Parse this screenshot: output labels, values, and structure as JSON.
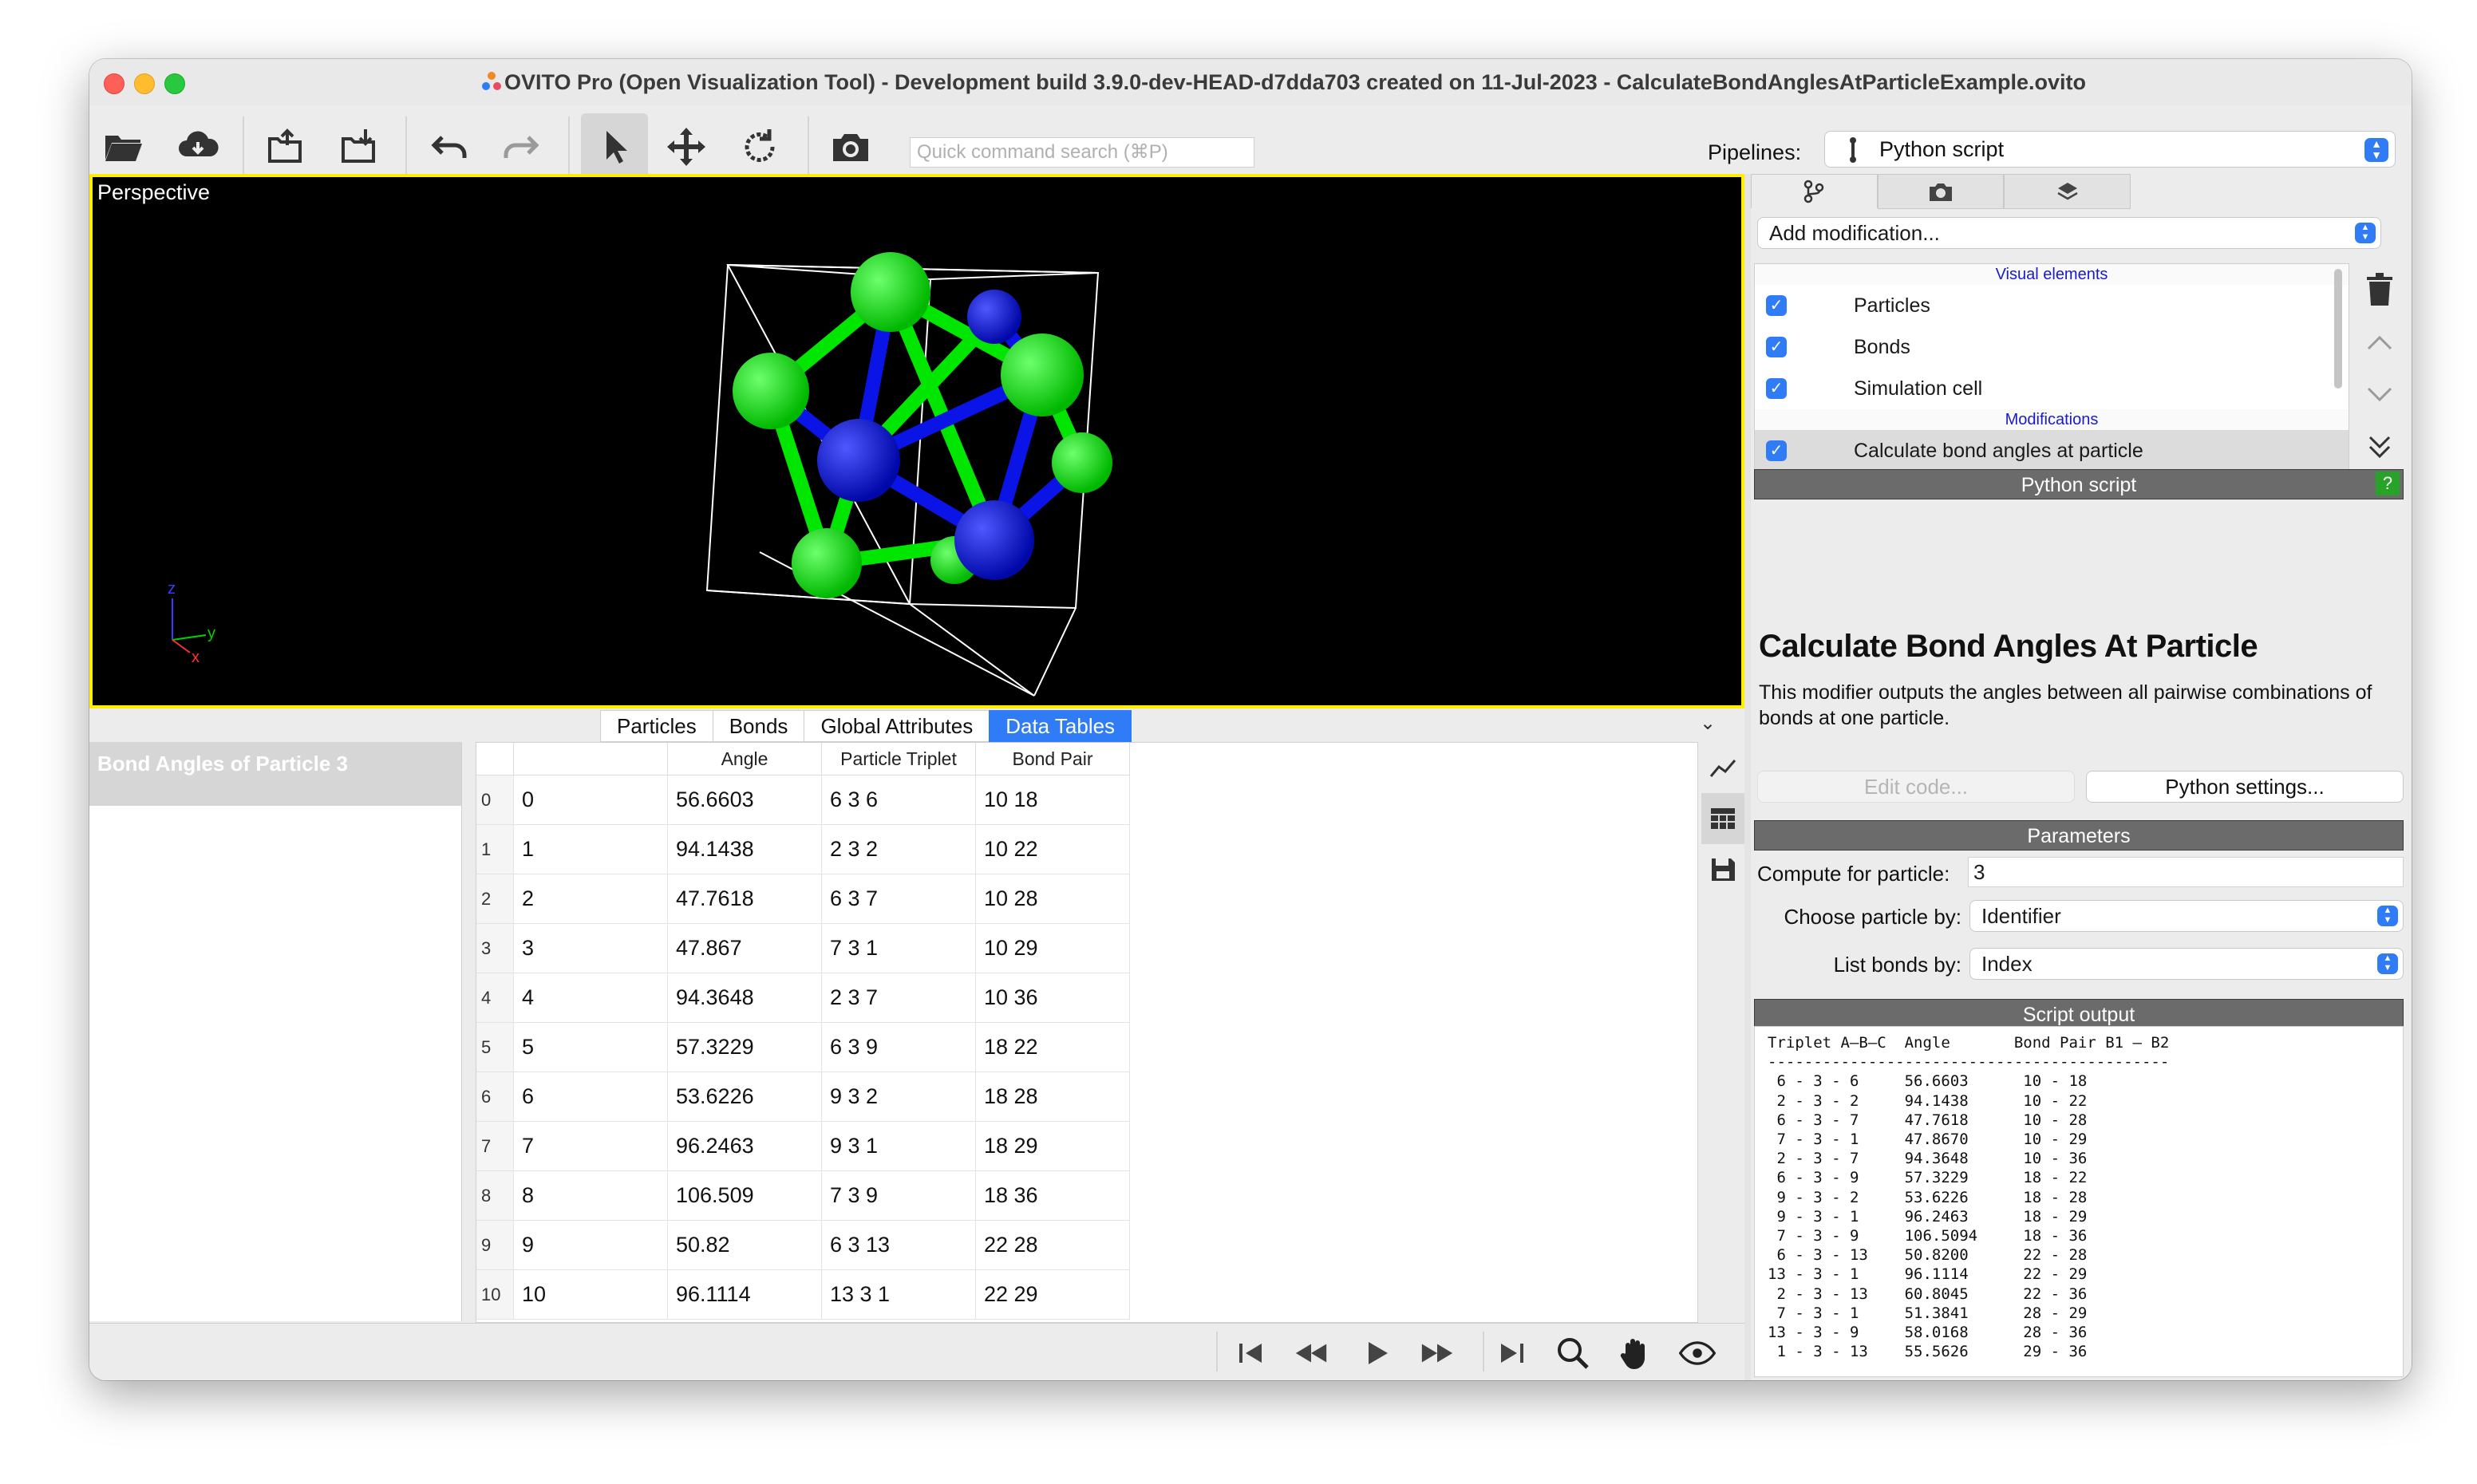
{
  "window": {
    "title": "OVITO Pro (Open Visualization Tool) - Development build 3.9.0-dev-HEAD-d7dda703 created on 11-Jul-2023 - CalculateBondAnglesAtParticleExample.ovito"
  },
  "toolbar": {
    "buttons": [
      "open-folder-icon",
      "cloud-download-icon",
      "export-icon",
      "import-icon",
      "undo-icon",
      "redo-icon",
      "select-cursor-icon",
      "move-icon",
      "rotate-icon",
      "camera-icon"
    ],
    "search_placeholder": "Quick command search (⌘P)",
    "pipelines_label": "Pipelines:",
    "pipeline_selected": "Python script"
  },
  "viewport": {
    "caption": "Perspective",
    "axes": {
      "z": "z",
      "y": "y",
      "x": "x"
    }
  },
  "inspector": {
    "tabs": [
      "Particles",
      "Bonds",
      "Global Attributes",
      "Data Tables"
    ],
    "active_tab": "Data Tables",
    "tables": [
      "Bond Angles of Particle 3"
    ],
    "columns": [
      "Angle",
      "Particle Triplet",
      "Bond Pair"
    ],
    "rows": [
      {
        "num": "0",
        "idx": "0",
        "angle": "56.6603",
        "triplet": "6 3 6",
        "pair": "10 18"
      },
      {
        "num": "1",
        "idx": "1",
        "angle": "94.1438",
        "triplet": "2 3 2",
        "pair": "10 22"
      },
      {
        "num": "2",
        "idx": "2",
        "angle": "47.7618",
        "triplet": "6 3 7",
        "pair": "10 28"
      },
      {
        "num": "3",
        "idx": "3",
        "angle": "47.867",
        "triplet": "7 3 1",
        "pair": "10 29"
      },
      {
        "num": "4",
        "idx": "4",
        "angle": "94.3648",
        "triplet": "2 3 7",
        "pair": "10 36"
      },
      {
        "num": "5",
        "idx": "5",
        "angle": "57.3229",
        "triplet": "6 3 9",
        "pair": "18 22"
      },
      {
        "num": "6",
        "idx": "6",
        "angle": "53.6226",
        "triplet": "9 3 2",
        "pair": "18 28"
      },
      {
        "num": "7",
        "idx": "7",
        "angle": "96.2463",
        "triplet": "9 3 1",
        "pair": "18 29"
      },
      {
        "num": "8",
        "idx": "8",
        "angle": "106.509",
        "triplet": "7 3 9",
        "pair": "18 36"
      },
      {
        "num": "9",
        "idx": "9",
        "angle": "50.82",
        "triplet": "6 3 13",
        "pair": "22 28"
      },
      {
        "num": "10",
        "idx": "10",
        "angle": "96.1114",
        "triplet": "13 3 1",
        "pair": "22 29"
      }
    ]
  },
  "pipeline_editor": {
    "add_modification": "Add modification...",
    "visual_elements_header": "Visual elements",
    "visual_elements": [
      "Particles",
      "Bonds",
      "Simulation cell"
    ],
    "modifications_header": "Modifications",
    "modifications": [
      "Calculate bond angles at particle"
    ]
  },
  "modifier_panel": {
    "header": "Python script",
    "help": "?",
    "title": "Calculate Bond Angles At Particle",
    "description": "This modifier outputs the angles between all pairwise combinations of bonds at one particle.",
    "edit_code": "Edit code...",
    "python_settings": "Python settings...",
    "parameters_header": "Parameters",
    "compute_label": "Compute for particle:",
    "compute_value": "3",
    "choose_label": "Choose particle by:",
    "choose_value": "Identifier",
    "list_label": "List bonds by:",
    "list_value": "Index",
    "script_output_header": "Script output",
    "script_output": "Triplet A–B–C  Angle       Bond Pair B1 – B2\n--------------------------------------------\n 6 - 3 - 6     56.6603      10 - 18\n 2 - 3 - 2     94.1438      10 - 22\n 6 - 3 - 7     47.7618      10 - 28\n 7 - 3 - 1     47.8670      10 - 29\n 2 - 3 - 7     94.3648      10 - 36\n 6 - 3 - 9     57.3229      18 - 22\n 9 - 3 - 2     53.6226      18 - 28\n 9 - 3 - 1     96.2463      18 - 29\n 7 - 3 - 9     106.5094     18 - 36\n 6 - 3 - 13    50.8200      22 - 28\n13 - 3 - 1     96.1114      22 - 29\n 2 - 3 - 13    60.8045      22 - 36\n 7 - 3 - 1     51.3841      28 - 29\n13 - 3 - 9     58.0168      28 - 36\n 1 - 3 - 13    55.5626      29 - 36"
  },
  "colors": {
    "accent": "#2f7cf6",
    "viewport_border": "#ffee00",
    "particle_green": "#00e600",
    "particle_blue": "#0a14e6",
    "group_header": "#6b6b6b"
  }
}
